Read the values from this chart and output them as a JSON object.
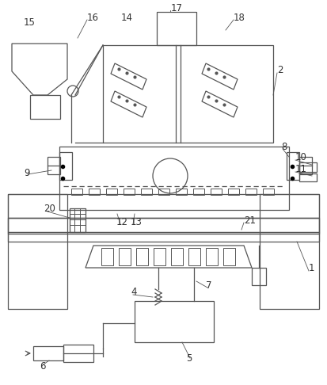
{
  "bg_color": "#ffffff",
  "line_color": "#555555",
  "label_color": "#333333"
}
